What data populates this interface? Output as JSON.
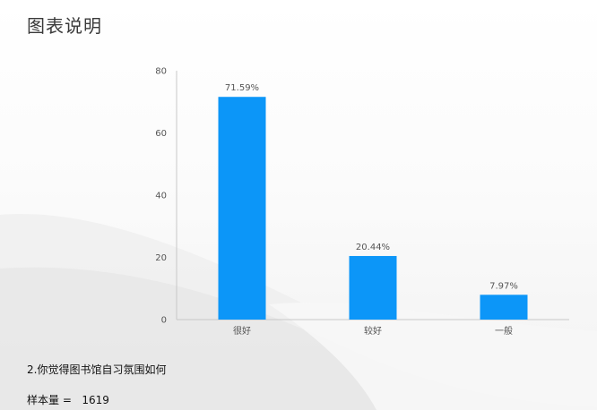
{
  "page": {
    "title": "图表说明",
    "question": "2.你觉得图书馆自习氛围如何",
    "sample_label": "样本量 =",
    "sample_value": "1619"
  },
  "colors": {
    "bar": "#0c96f8",
    "axis": "#c8c8c8",
    "text": "#555555"
  },
  "chart_data": {
    "type": "bar",
    "categories": [
      "很好",
      "较好",
      "一般"
    ],
    "values": [
      71.59,
      20.44,
      7.97
    ],
    "data_labels": [
      "71.59%",
      "20.44%",
      "7.97%"
    ],
    "ylim": [
      0,
      80
    ],
    "yticks": [
      0,
      20,
      40,
      60,
      80
    ],
    "title": "",
    "xlabel": "",
    "ylabel": "",
    "grid": false,
    "legend": "none"
  }
}
